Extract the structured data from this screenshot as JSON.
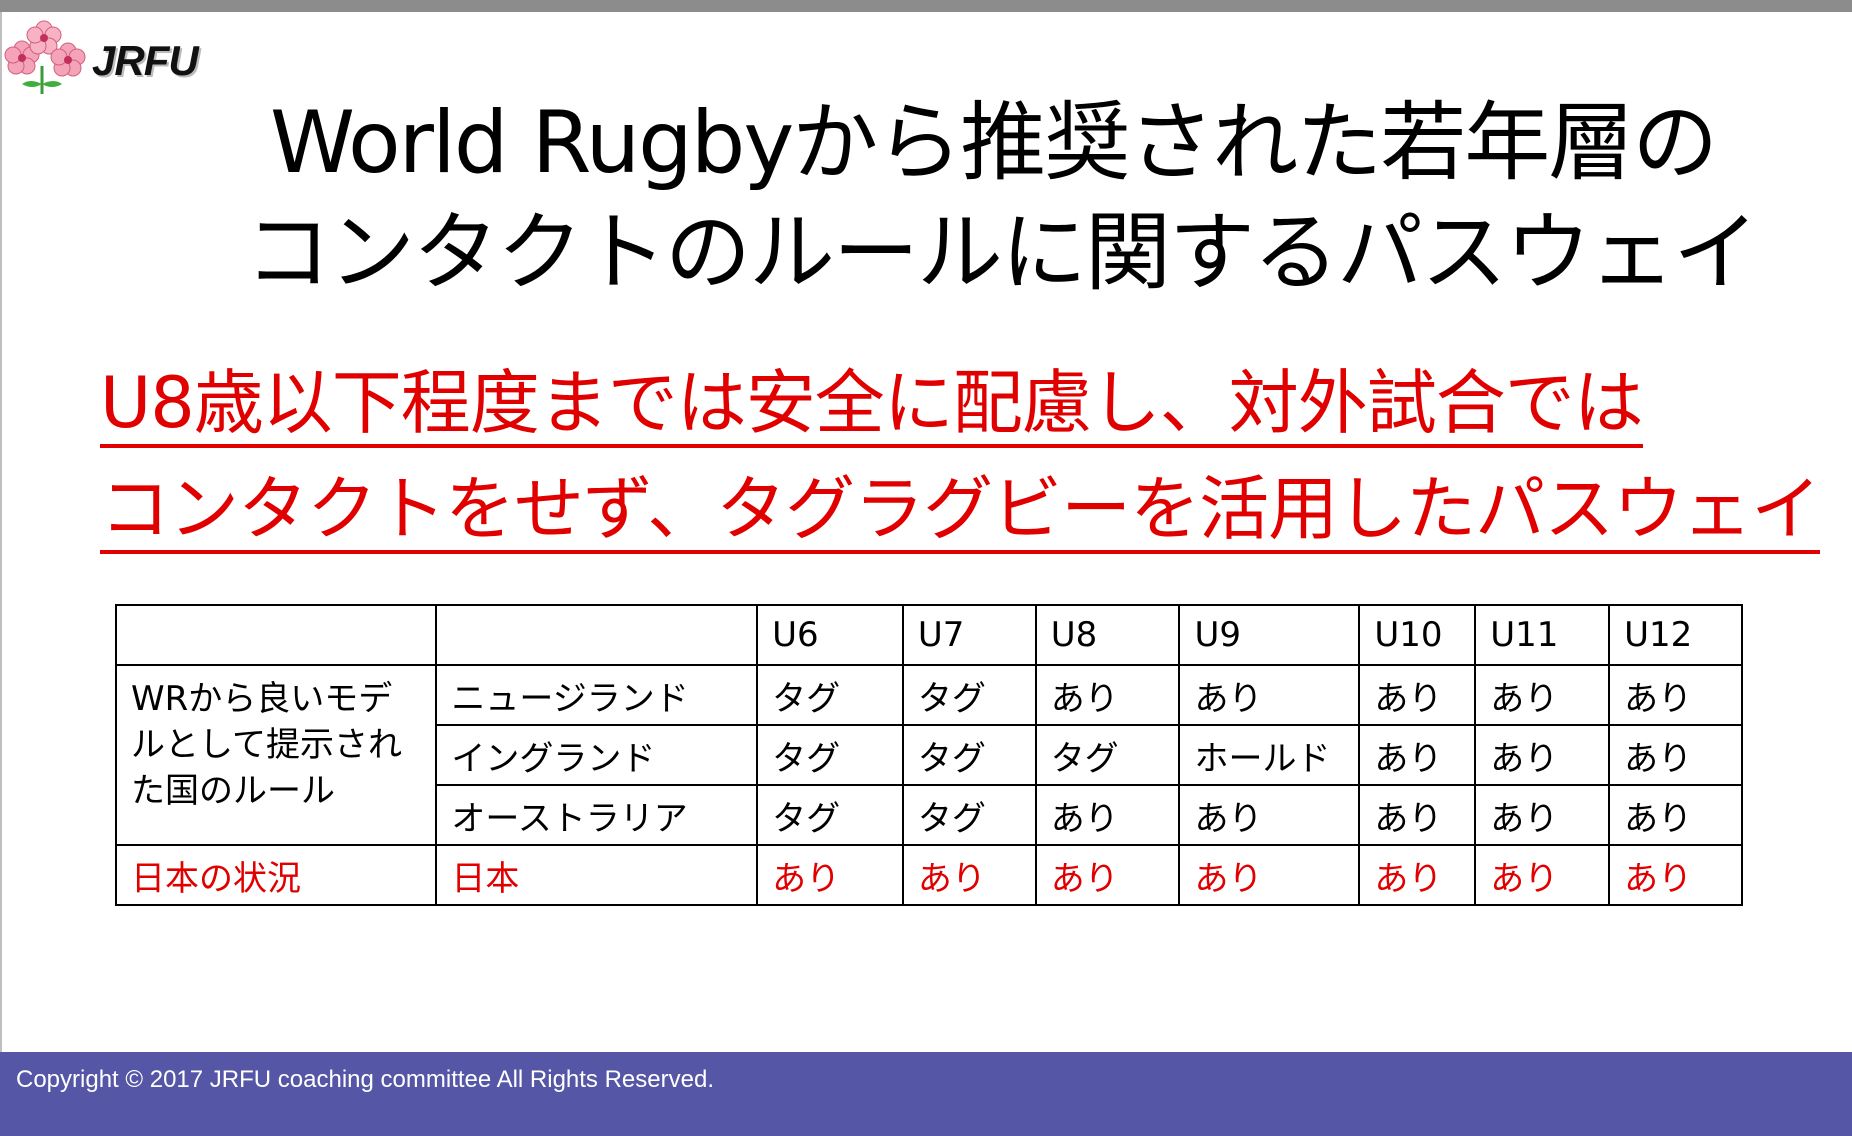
{
  "logo": {
    "text": "JRFU"
  },
  "title": {
    "line1": "World Rugbyから推奨された若年層の",
    "line2": "コンタクトのルールに関するパスウェイ"
  },
  "subtitle": {
    "line1": "U8歳以下程度までは安全に配慮し、対外試合では",
    "line2": "コンタクトをせず、タグラグビーを活用したパスウェイ"
  },
  "table": {
    "columns": [
      "U6",
      "U7",
      "U8",
      "U9",
      "U10",
      "U11",
      "U12"
    ],
    "group_label": "WRから良いモデルとして提示された国のルール",
    "rows": [
      {
        "country": "ニュージランド",
        "values": [
          "タグ",
          "タグ",
          "あり",
          "あり",
          "あり",
          "あり",
          "あり"
        ]
      },
      {
        "country": "イングランド",
        "values": [
          "タグ",
          "タグ",
          "タグ",
          "ホールド",
          "あり",
          "あり",
          "あり"
        ]
      },
      {
        "country": "オーストラリア",
        "values": [
          "タグ",
          "タグ",
          "あり",
          "あり",
          "あり",
          "あり",
          "あり"
        ]
      }
    ],
    "japan_row": {
      "label": "日本の状況",
      "country": "日本",
      "values": [
        "あり",
        "あり",
        "あり",
        "あり",
        "あり",
        "あり",
        "あり"
      ]
    }
  },
  "footer": {
    "copyright": "Copyright © 2017 JRFU coaching committee All Rights Reserved."
  },
  "colors": {
    "accent_red": "#e00000",
    "footer_bg": "#5556a6",
    "top_bar": "#8c8c8c"
  }
}
